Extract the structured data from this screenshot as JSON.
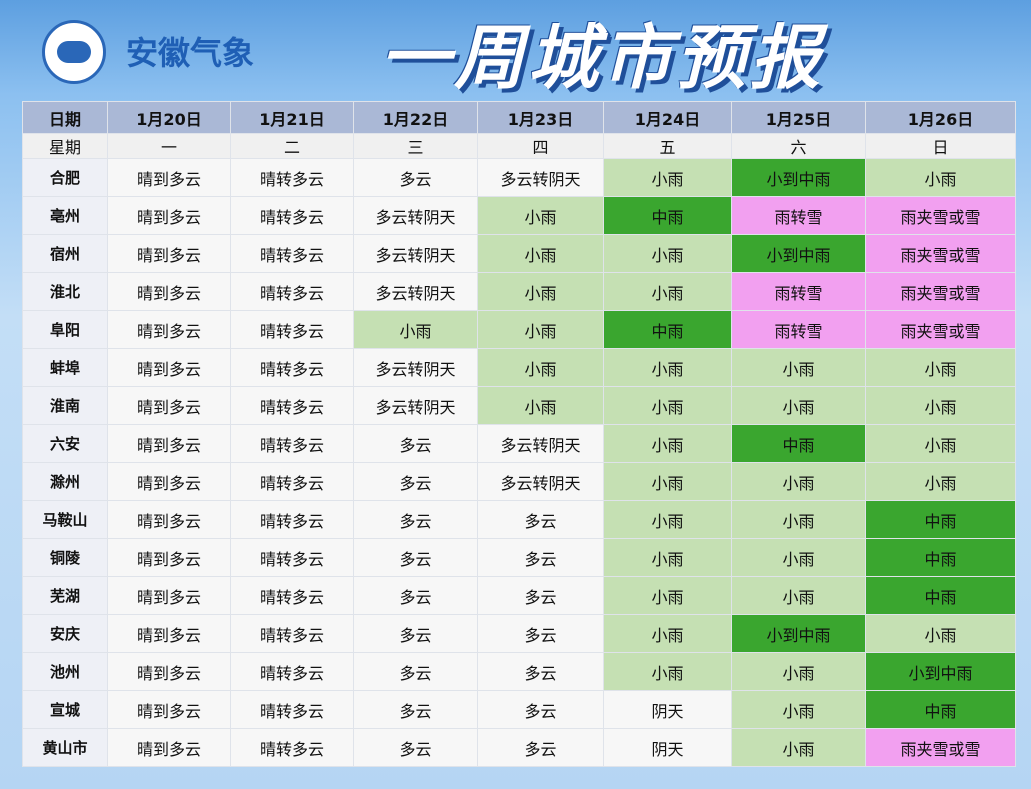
{
  "header": {
    "brand": "安徽气象",
    "title": "一周城市预报"
  },
  "table": {
    "columns": [
      "日期",
      "1月20日",
      "1月21日",
      "1月22日",
      "1月23日",
      "1月24日",
      "1月25日",
      "1月26日"
    ],
    "weekdays": [
      "星期",
      "一",
      "二",
      "三",
      "四",
      "五",
      "六",
      "日"
    ],
    "rows": [
      [
        "合肥",
        "晴到多云",
        "晴转多云",
        "多云",
        "多云转阴天",
        "小雨",
        "小到中雨",
        "小雨"
      ],
      [
        "亳州",
        "晴到多云",
        "晴转多云",
        "多云转阴天",
        "小雨",
        "中雨",
        "雨转雪",
        "雨夹雪或雪"
      ],
      [
        "宿州",
        "晴到多云",
        "晴转多云",
        "多云转阴天",
        "小雨",
        "小雨",
        "小到中雨",
        "雨夹雪或雪"
      ],
      [
        "淮北",
        "晴到多云",
        "晴转多云",
        "多云转阴天",
        "小雨",
        "小雨",
        "雨转雪",
        "雨夹雪或雪"
      ],
      [
        "阜阳",
        "晴到多云",
        "晴转多云",
        "小雨",
        "小雨",
        "中雨",
        "雨转雪",
        "雨夹雪或雪"
      ],
      [
        "蚌埠",
        "晴到多云",
        "晴转多云",
        "多云转阴天",
        "小雨",
        "小雨",
        "小雨",
        "小雨"
      ],
      [
        "淮南",
        "晴到多云",
        "晴转多云",
        "多云转阴天",
        "小雨",
        "小雨",
        "小雨",
        "小雨"
      ],
      [
        "六安",
        "晴到多云",
        "晴转多云",
        "多云",
        "多云转阴天",
        "小雨",
        "中雨",
        "小雨"
      ],
      [
        "滁州",
        "晴到多云",
        "晴转多云",
        "多云",
        "多云转阴天",
        "小雨",
        "小雨",
        "小雨"
      ],
      [
        "马鞍山",
        "晴到多云",
        "晴转多云",
        "多云",
        "多云",
        "小雨",
        "小雨",
        "中雨"
      ],
      [
        "铜陵",
        "晴到多云",
        "晴转多云",
        "多云",
        "多云",
        "小雨",
        "小雨",
        "中雨"
      ],
      [
        "芜湖",
        "晴到多云",
        "晴转多云",
        "多云",
        "多云",
        "小雨",
        "小雨",
        "中雨"
      ],
      [
        "安庆",
        "晴到多云",
        "晴转多云",
        "多云",
        "多云",
        "小雨",
        "小到中雨",
        "小雨"
      ],
      [
        "池州",
        "晴到多云",
        "晴转多云",
        "多云",
        "多云",
        "小雨",
        "小雨",
        "小到中雨"
      ],
      [
        "宣城",
        "晴到多云",
        "晴转多云",
        "多云",
        "多云",
        "阴天",
        "小雨",
        "中雨"
      ],
      [
        "黄山市",
        "晴到多云",
        "晴转多云",
        "多云",
        "多云",
        "阴天",
        "小雨",
        "雨夹雪或雪"
      ]
    ],
    "cell_colors": {
      "小雨": "#c5e0b3",
      "中雨": "#3aa62f",
      "小到中雨": "#3aa62f",
      "雨转雪": "#f2a0f0",
      "雨夹雪或雪": "#f2a0f0"
    }
  }
}
